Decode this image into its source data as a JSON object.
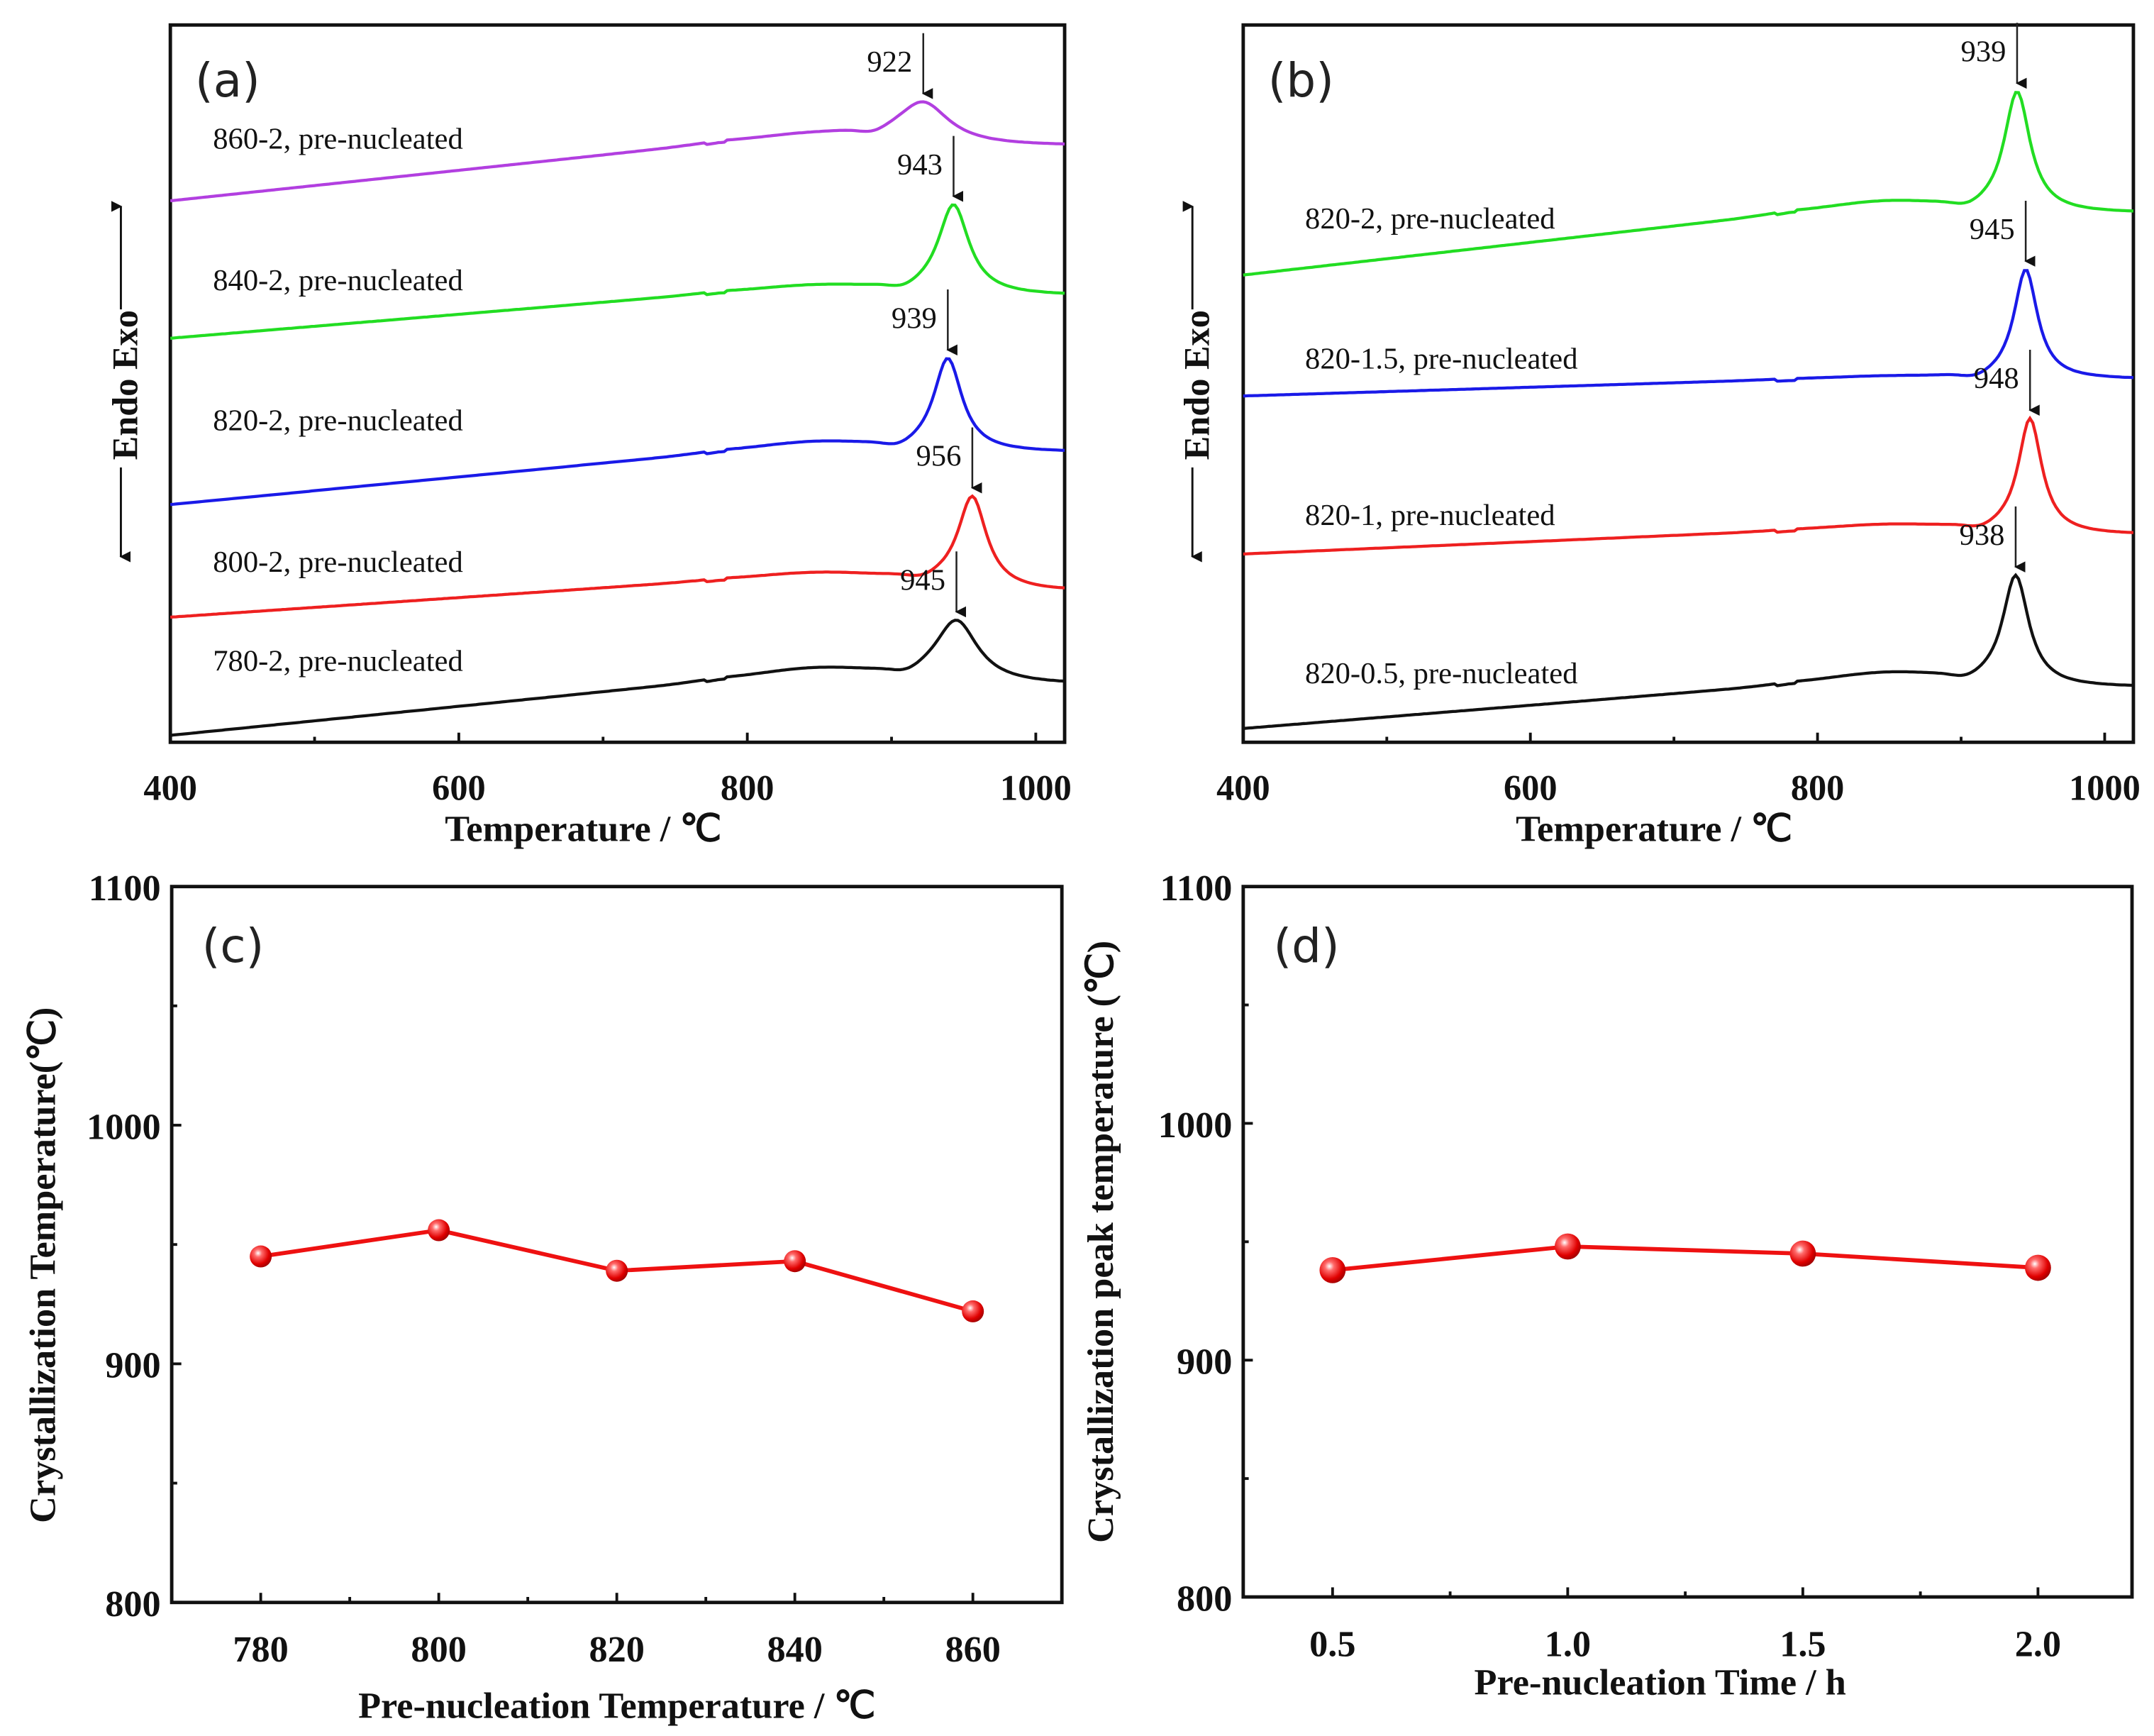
{
  "chart_data": [
    {
      "panel": "(a)",
      "type": "line",
      "xlabel": "Temperature / ℃",
      "ylabel": "Endo Exo",
      "xlim": [
        400,
        1020
      ],
      "xticks": [
        "400",
        "600",
        "800",
        "1000"
      ],
      "series": [
        {
          "name": "860-2, pre-nucleated",
          "color": "#b23fe0",
          "peak": 922,
          "peak_label": "922"
        },
        {
          "name": "840-2, pre-nucleated",
          "color": "#22dd22",
          "peak": 943,
          "peak_label": "943"
        },
        {
          "name": "820-2, pre-nucleated",
          "color": "#1a1ae8",
          "peak": 939,
          "peak_label": "939"
        },
        {
          "name": "800-2, pre-nucleated",
          "color": "#ee2020",
          "peak": 956,
          "peak_label": "956"
        },
        {
          "name": "780-2, pre-nucleated",
          "color": "#111111",
          "peak": 945,
          "peak_label": "945"
        }
      ]
    },
    {
      "panel": "(b)",
      "type": "line",
      "xlabel": "Temperature / ℃",
      "ylabel": "Endo Exo",
      "xlim": [
        400,
        1020
      ],
      "xticks": [
        "400",
        "600",
        "800",
        "1000"
      ],
      "series": [
        {
          "name": "820-2, pre-nucleated",
          "color": "#22dd22",
          "peak": 939,
          "peak_label": "939"
        },
        {
          "name": "820-1.5, pre-nucleated",
          "color": "#1a1ae8",
          "peak": 945,
          "peak_label": "945"
        },
        {
          "name": "820-1, pre-nucleated",
          "color": "#ee2020",
          "peak": 948,
          "peak_label": "948"
        },
        {
          "name": "820-0.5, pre-nucleated",
          "color": "#111111",
          "peak": 938,
          "peak_label": "938"
        }
      ]
    },
    {
      "panel": "(c)",
      "type": "line",
      "xlabel": "Pre-nucleation Temperature / ℃",
      "ylabel": "Crystallization Temperature(℃)",
      "xlim": [
        770,
        870
      ],
      "ylim": [
        800,
        1100
      ],
      "xticks": [
        "780",
        "800",
        "820",
        "840",
        "860"
      ],
      "yticks": [
        "800",
        "900",
        "1000",
        "1100"
      ],
      "x": [
        780,
        800,
        820,
        840,
        860
      ],
      "y": [
        945,
        956,
        939,
        943,
        922
      ],
      "color": "#ee1111"
    },
    {
      "panel": "(d)",
      "type": "line",
      "xlabel": "Pre-nucleation Time / h",
      "ylabel": "Crystallization peak temperature (℃)",
      "xlim": [
        0.31,
        2.2
      ],
      "ylim": [
        800,
        1100
      ],
      "xticks": [
        "0.5",
        "1.0",
        "1.5",
        "2.0"
      ],
      "yticks": [
        "800",
        "900",
        "1000",
        "1100"
      ],
      "x": [
        0.5,
        1.0,
        1.5,
        2.0
      ],
      "y": [
        938,
        948,
        945,
        939
      ],
      "color": "#ee1111"
    }
  ]
}
